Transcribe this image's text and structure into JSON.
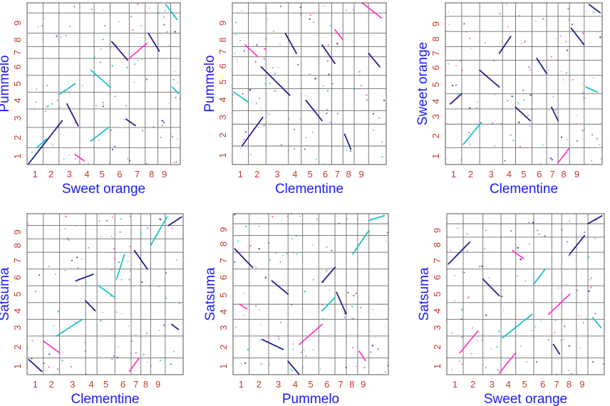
{
  "chart_data": [
    {
      "type": "scatter",
      "xlabel": "Sweet orange",
      "ylabel": "Pummelo",
      "x_ticks": [
        "1",
        "2",
        "3",
        "4",
        "5",
        "6",
        "7",
        "8",
        "9"
      ],
      "y_ticks": [
        "1",
        "2",
        "3",
        "4",
        "5",
        "6",
        "7",
        "8",
        "9"
      ],
      "x_bounds": [
        0,
        1.0,
        2.0,
        3.3,
        4.2,
        5.2,
        6.4,
        7.4,
        8.2,
        9.0,
        9.6
      ],
      "y_bounds": [
        0,
        1.0,
        2.2,
        3.3,
        4.3,
        5.3,
        6.3,
        7.0,
        7.8,
        9.0,
        9.6
      ],
      "segments": [
        {
          "x1": 0.1,
          "y1": 0.05,
          "x2": 2.2,
          "y2": 2.6,
          "c": "#1a1a8c"
        },
        {
          "x1": 0.6,
          "y1": 1.0,
          "x2": 1.2,
          "y2": 1.5,
          "c": "#13c1c9"
        },
        {
          "x1": 2.5,
          "y1": 3.6,
          "x2": 3.2,
          "y2": 2.3,
          "c": "#1a1a8c"
        },
        {
          "x1": 2.1,
          "y1": 4.2,
          "x2": 3.0,
          "y2": 4.8,
          "c": "#13c1c9"
        },
        {
          "x1": 4.0,
          "y1": 1.4,
          "x2": 5.1,
          "y2": 2.2,
          "c": "#13c1c9"
        },
        {
          "x1": 4.0,
          "y1": 5.6,
          "x2": 5.2,
          "y2": 4.6,
          "c": "#13c1c9"
        },
        {
          "x1": 5.3,
          "y1": 7.3,
          "x2": 6.3,
          "y2": 6.2,
          "c": "#1a1a8c"
        },
        {
          "x1": 6.4,
          "y1": 6.3,
          "x2": 7.5,
          "y2": 7.2,
          "c": "#ff33cc"
        },
        {
          "x1": 7.6,
          "y1": 7.8,
          "x2": 8.3,
          "y2": 6.7,
          "c": "#1a1a8c"
        },
        {
          "x1": 8.7,
          "y1": 9.5,
          "x2": 9.4,
          "y2": 8.6,
          "c": "#13c1c9"
        },
        {
          "x1": 9.1,
          "y1": 4.6,
          "x2": 9.5,
          "y2": 4.2,
          "c": "#13c1c9"
        },
        {
          "x1": 3.0,
          "y1": 0.6,
          "x2": 3.6,
          "y2": 0.2,
          "c": "#ff33cc"
        },
        {
          "x1": 6.2,
          "y1": 2.7,
          "x2": 6.8,
          "y2": 2.3,
          "c": "#1a1a8c"
        }
      ]
    },
    {
      "type": "scatter",
      "xlabel": "Clementine",
      "ylabel": "Pummelo",
      "x_ticks": [
        "1",
        "2",
        "3",
        "4",
        "5",
        "6",
        "7",
        "8",
        "9"
      ],
      "y_ticks": [
        "1",
        "2",
        "3",
        "4",
        "5",
        "6",
        "7",
        "8",
        "9"
      ],
      "x_bounds": [
        0,
        1.0,
        2.1,
        3.5,
        4.3,
        5.4,
        6.2,
        6.9,
        7.6,
        8.5,
        9.6
      ],
      "y_bounds": [
        0,
        1.1,
        2.4,
        3.2,
        4.5,
        5.3,
        6.4,
        7.0,
        7.8,
        9.0,
        9.6
      ],
      "segments": [
        {
          "x1": 0.1,
          "y1": 4.3,
          "x2": 1.0,
          "y2": 3.7,
          "c": "#13c1c9"
        },
        {
          "x1": 0.6,
          "y1": 1.1,
          "x2": 1.9,
          "y2": 2.8,
          "c": "#1a1a8c"
        },
        {
          "x1": 1.8,
          "y1": 5.8,
          "x2": 3.6,
          "y2": 4.1,
          "c": "#1a1a8c"
        },
        {
          "x1": 3.3,
          "y1": 7.8,
          "x2": 4.0,
          "y2": 6.6,
          "c": "#1a1a8c"
        },
        {
          "x1": 4.6,
          "y1": 3.8,
          "x2": 5.6,
          "y2": 2.6,
          "c": "#1a1a8c"
        },
        {
          "x1": 5.6,
          "y1": 7.1,
          "x2": 6.4,
          "y2": 6.0,
          "c": "#1a1a8c"
        },
        {
          "x1": 6.4,
          "y1": 8.0,
          "x2": 6.9,
          "y2": 7.4,
          "c": "#ff33cc"
        },
        {
          "x1": 7.0,
          "y1": 1.8,
          "x2": 7.4,
          "y2": 0.9,
          "c": "#1a1a8c"
        },
        {
          "x1": 8.1,
          "y1": 9.6,
          "x2": 9.3,
          "y2": 8.7,
          "c": "#ff33cc"
        },
        {
          "x1": 8.5,
          "y1": 6.6,
          "x2": 9.2,
          "y2": 5.8,
          "c": "#1a1a8c"
        },
        {
          "x1": 0.8,
          "y1": 7.1,
          "x2": 1.6,
          "y2": 6.4,
          "c": "#ff33cc"
        }
      ]
    },
    {
      "type": "scatter",
      "xlabel": "Clementine",
      "ylabel": "Sweet orange",
      "x_ticks": [
        "1",
        "2",
        "3",
        "4",
        "5",
        "6",
        "7",
        "8",
        "9"
      ],
      "y_ticks": [
        "1",
        "2",
        "3",
        "4",
        "5",
        "6",
        "7",
        "8",
        "9"
      ],
      "x_bounds": [
        0,
        1.0,
        2.1,
        3.5,
        4.3,
        5.3,
        6.2,
        6.9,
        7.6,
        8.5,
        9.6
      ],
      "y_bounds": [
        0,
        1.0,
        2.4,
        3.3,
        4.2,
        5.3,
        6.2,
        7.0,
        7.9,
        8.8,
        9.6
      ],
      "segments": [
        {
          "x1": 0.3,
          "y1": 3.6,
          "x2": 1.0,
          "y2": 4.2,
          "c": "#1a1a8c"
        },
        {
          "x1": 1.1,
          "y1": 1.2,
          "x2": 2.2,
          "y2": 2.5,
          "c": "#13c1c9"
        },
        {
          "x1": 2.1,
          "y1": 5.6,
          "x2": 3.3,
          "y2": 4.6,
          "c": "#1a1a8c"
        },
        {
          "x1": 3.3,
          "y1": 6.6,
          "x2": 4.0,
          "y2": 7.6,
          "c": "#1a1a8c"
        },
        {
          "x1": 4.3,
          "y1": 3.4,
          "x2": 5.2,
          "y2": 2.6,
          "c": "#1a1a8c"
        },
        {
          "x1": 5.6,
          "y1": 6.3,
          "x2": 6.2,
          "y2": 5.4,
          "c": "#1a1a8c"
        },
        {
          "x1": 6.9,
          "y1": 0.1,
          "x2": 7.6,
          "y2": 1.0,
          "c": "#ff33cc"
        },
        {
          "x1": 6.5,
          "y1": 3.4,
          "x2": 6.9,
          "y2": 2.6,
          "c": "#1a1a8c"
        },
        {
          "x1": 7.7,
          "y1": 8.1,
          "x2": 8.5,
          "y2": 7.1,
          "c": "#1a1a8c"
        },
        {
          "x1": 8.8,
          "y1": 9.5,
          "x2": 9.5,
          "y2": 9.0,
          "c": "#1a1a8c"
        },
        {
          "x1": 8.6,
          "y1": 4.6,
          "x2": 9.3,
          "y2": 4.3,
          "c": "#13c1c9"
        }
      ]
    },
    {
      "type": "scatter",
      "xlabel": "Clementine",
      "ylabel": "Satsuma",
      "x_ticks": [
        "1",
        "2",
        "3",
        "4",
        "5",
        "6",
        "7",
        "8",
        "9"
      ],
      "y_ticks": [
        "1",
        "2",
        "3",
        "4",
        "5",
        "6",
        "7",
        "8",
        "9"
      ],
      "x_bounds": [
        0,
        1.0,
        2.0,
        3.6,
        4.3,
        5.4,
        6.4,
        7.0,
        7.6,
        8.5,
        9.6
      ],
      "y_bounds": [
        0,
        1.0,
        2.3,
        3.3,
        4.3,
        5.3,
        6.3,
        7.3,
        8.1,
        8.9,
        9.6
      ],
      "segments": [
        {
          "x1": 0.1,
          "y1": 0.9,
          "x2": 0.9,
          "y2": 0.2,
          "c": "#1a1a8c"
        },
        {
          "x1": 1.0,
          "y1": 2.0,
          "x2": 2.0,
          "y2": 1.3,
          "c": "#ff33cc"
        },
        {
          "x1": 1.8,
          "y1": 2.3,
          "x2": 3.4,
          "y2": 3.3,
          "c": "#13c1c9"
        },
        {
          "x1": 3.0,
          "y1": 5.6,
          "x2": 4.1,
          "y2": 6.0,
          "c": "#1a1a8c"
        },
        {
          "x1": 3.6,
          "y1": 4.4,
          "x2": 4.2,
          "y2": 3.8,
          "c": "#1a1a8c"
        },
        {
          "x1": 4.4,
          "y1": 5.3,
          "x2": 5.4,
          "y2": 4.6,
          "c": "#13c1c9"
        },
        {
          "x1": 5.5,
          "y1": 5.7,
          "x2": 6.0,
          "y2": 7.2,
          "c": "#13c1c9"
        },
        {
          "x1": 6.6,
          "y1": 7.4,
          "x2": 7.4,
          "y2": 6.3,
          "c": "#1a1a8c"
        },
        {
          "x1": 7.6,
          "y1": 7.7,
          "x2": 8.6,
          "y2": 9.4,
          "c": "#13c1c9"
        },
        {
          "x1": 8.7,
          "y1": 8.9,
          "x2": 9.5,
          "y2": 9.4,
          "c": "#1a1a8c"
        },
        {
          "x1": 6.3,
          "y1": 0.2,
          "x2": 6.9,
          "y2": 1.0,
          "c": "#ff33cc"
        },
        {
          "x1": 8.9,
          "y1": 3.0,
          "x2": 9.3,
          "y2": 2.7,
          "c": "#1a1a8c"
        }
      ]
    },
    {
      "type": "scatter",
      "xlabel": "Pummelo",
      "ylabel": "Satsuma",
      "x_ticks": [
        "1",
        "2",
        "3",
        "4",
        "5",
        "6",
        "7",
        "8",
        "9"
      ],
      "y_ticks": [
        "1",
        "2",
        "3",
        "4",
        "5",
        "6",
        "7",
        "8",
        "9"
      ],
      "x_bounds": [
        0,
        1.0,
        2.2,
        3.4,
        4.3,
        5.3,
        6.3,
        7.0,
        7.7,
        8.4,
        9.6
      ],
      "y_bounds": [
        0,
        1.0,
        2.3,
        3.3,
        4.2,
        5.3,
        6.3,
        7.3,
        8.3,
        9.0,
        9.6
      ],
      "segments": [
        {
          "x1": 0.1,
          "y1": 7.5,
          "x2": 1.2,
          "y2": 6.4,
          "c": "#1a1a8c"
        },
        {
          "x1": 1.8,
          "y1": 2.1,
          "x2": 3.1,
          "y2": 1.5,
          "c": "#1a1a8c"
        },
        {
          "x1": 2.4,
          "y1": 5.6,
          "x2": 3.4,
          "y2": 4.8,
          "c": "#1a1a8c"
        },
        {
          "x1": 3.4,
          "y1": 0.8,
          "x2": 4.1,
          "y2": 0.0,
          "c": "#1a1a8c"
        },
        {
          "x1": 4.1,
          "y1": 1.8,
          "x2": 5.5,
          "y2": 3.0,
          "c": "#ff33cc"
        },
        {
          "x1": 5.5,
          "y1": 3.8,
          "x2": 6.3,
          "y2": 4.6,
          "c": "#13c1c9"
        },
        {
          "x1": 5.5,
          "y1": 5.5,
          "x2": 6.3,
          "y2": 6.4,
          "c": "#1a1a8c"
        },
        {
          "x1": 6.4,
          "y1": 4.9,
          "x2": 7.0,
          "y2": 3.6,
          "c": "#1a1a8c"
        },
        {
          "x1": 7.4,
          "y1": 7.2,
          "x2": 8.4,
          "y2": 8.6,
          "c": "#13c1c9"
        },
        {
          "x1": 8.4,
          "y1": 9.2,
          "x2": 9.4,
          "y2": 9.5,
          "c": "#13c1c9"
        },
        {
          "x1": 0.4,
          "y1": 4.2,
          "x2": 0.9,
          "y2": 3.9,
          "c": "#ff33cc"
        },
        {
          "x1": 7.8,
          "y1": 1.4,
          "x2": 8.2,
          "y2": 0.8,
          "c": "#ff33cc"
        }
      ]
    },
    {
      "type": "scatter",
      "xlabel": "Sweet orange",
      "ylabel": "Satsuma",
      "x_ticks": [
        "1",
        "2",
        "3",
        "4",
        "5",
        "6",
        "7",
        "8",
        "9"
      ],
      "y_ticks": [
        "1",
        "2",
        "3",
        "4",
        "5",
        "6",
        "7",
        "8",
        "9"
      ],
      "x_bounds": [
        0,
        1.0,
        2.2,
        3.3,
        4.2,
        5.3,
        6.4,
        7.0,
        7.9,
        8.6,
        9.6
      ],
      "y_bounds": [
        0,
        1.0,
        2.3,
        3.3,
        4.3,
        5.3,
        6.3,
        7.3,
        8.2,
        9.0,
        9.6
      ],
      "segments": [
        {
          "x1": 0.1,
          "y1": 6.6,
          "x2": 1.4,
          "y2": 7.9,
          "c": "#1a1a8c"
        },
        {
          "x1": 0.8,
          "y1": 1.3,
          "x2": 1.9,
          "y2": 2.6,
          "c": "#ff33cc"
        },
        {
          "x1": 2.2,
          "y1": 5.7,
          "x2": 3.2,
          "y2": 4.7,
          "c": "#1a1a8c"
        },
        {
          "x1": 3.2,
          "y1": 0.1,
          "x2": 4.2,
          "y2": 1.3,
          "c": "#ff33cc"
        },
        {
          "x1": 3.4,
          "y1": 2.2,
          "x2": 5.2,
          "y2": 3.6,
          "c": "#13c1c9"
        },
        {
          "x1": 5.3,
          "y1": 5.4,
          "x2": 6.0,
          "y2": 6.3,
          "c": "#13c1c9"
        },
        {
          "x1": 6.2,
          "y1": 3.6,
          "x2": 7.5,
          "y2": 4.8,
          "c": "#ff33cc"
        },
        {
          "x1": 7.5,
          "y1": 7.2,
          "x2": 8.4,
          "y2": 8.3,
          "c": "#1a1a8c"
        },
        {
          "x1": 8.6,
          "y1": 9.0,
          "x2": 9.5,
          "y2": 9.5,
          "c": "#1a1a8c"
        },
        {
          "x1": 8.9,
          "y1": 3.4,
          "x2": 9.4,
          "y2": 2.8,
          "c": "#13c1c9"
        },
        {
          "x1": 4.0,
          "y1": 7.4,
          "x2": 4.7,
          "y2": 6.9,
          "c": "#ff33cc"
        },
        {
          "x1": 6.5,
          "y1": 1.8,
          "x2": 6.9,
          "y2": 1.2,
          "c": "#1a1a8c"
        }
      ]
    }
  ]
}
